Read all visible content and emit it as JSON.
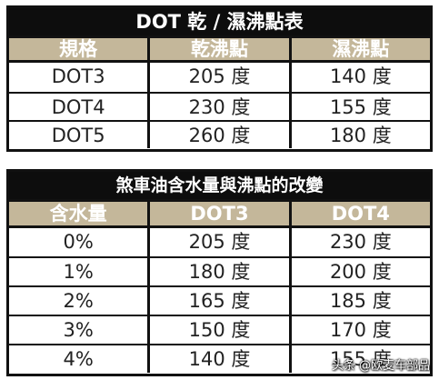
{
  "table1": {
    "title": "DOT 乾 /  濕沸點表",
    "headers": [
      "規格",
      "乾沸點",
      "濕沸點"
    ],
    "rows": [
      [
        "DOT3",
        "205 度",
        "140 度"
      ],
      [
        "DOT4",
        "230 度",
        "155 度"
      ],
      [
        "DOT5",
        "260 度",
        "180 度"
      ]
    ]
  },
  "table2": {
    "title": "煞車油含水量與沸點的改變",
    "headers": [
      "含水量",
      "DOT3",
      "DOT4"
    ],
    "rows": [
      [
        "0%",
        "205 度",
        "230 度"
      ],
      [
        "1%",
        "180 度",
        "200 度"
      ],
      [
        "2%",
        "165 度",
        "185 度"
      ],
      [
        "3%",
        "150 度",
        "170 度"
      ],
      [
        "4%",
        "140 度",
        "155 度"
      ]
    ]
  },
  "watermark": "头条 @欧麦车部品",
  "colors": {
    "title_bg": "#0d0d0d",
    "header_bg": "#c4b79a",
    "border": "#111111"
  }
}
